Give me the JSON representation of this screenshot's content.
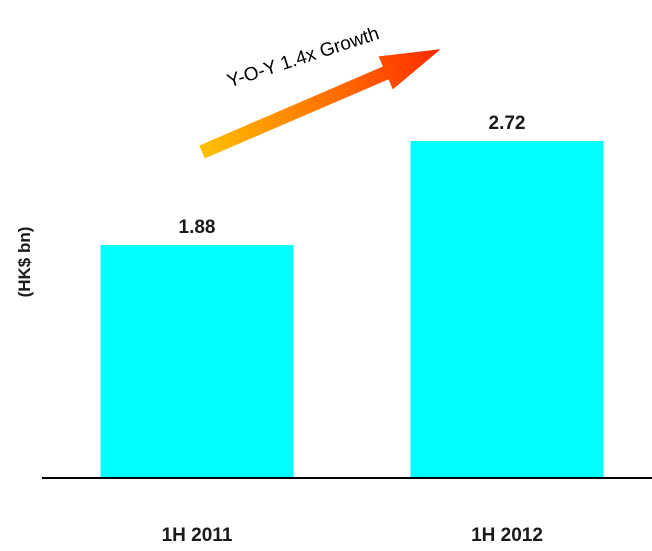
{
  "chart_data": {
    "type": "bar",
    "categories": [
      "1H 2011",
      "1H 2012"
    ],
    "values": [
      1.88,
      2.72
    ],
    "data_labels": [
      "1.88",
      "2.72"
    ],
    "ylabel": "(HK$ bn)",
    "ylim": [
      0,
      3.6
    ],
    "grid": false,
    "bar_color": "#00FFFF",
    "annotation": {
      "text": "Y-O-Y 1.4x Growth",
      "arrow_colors": [
        "#FFC000",
        "#FF6600",
        "#FF2A00"
      ]
    }
  }
}
